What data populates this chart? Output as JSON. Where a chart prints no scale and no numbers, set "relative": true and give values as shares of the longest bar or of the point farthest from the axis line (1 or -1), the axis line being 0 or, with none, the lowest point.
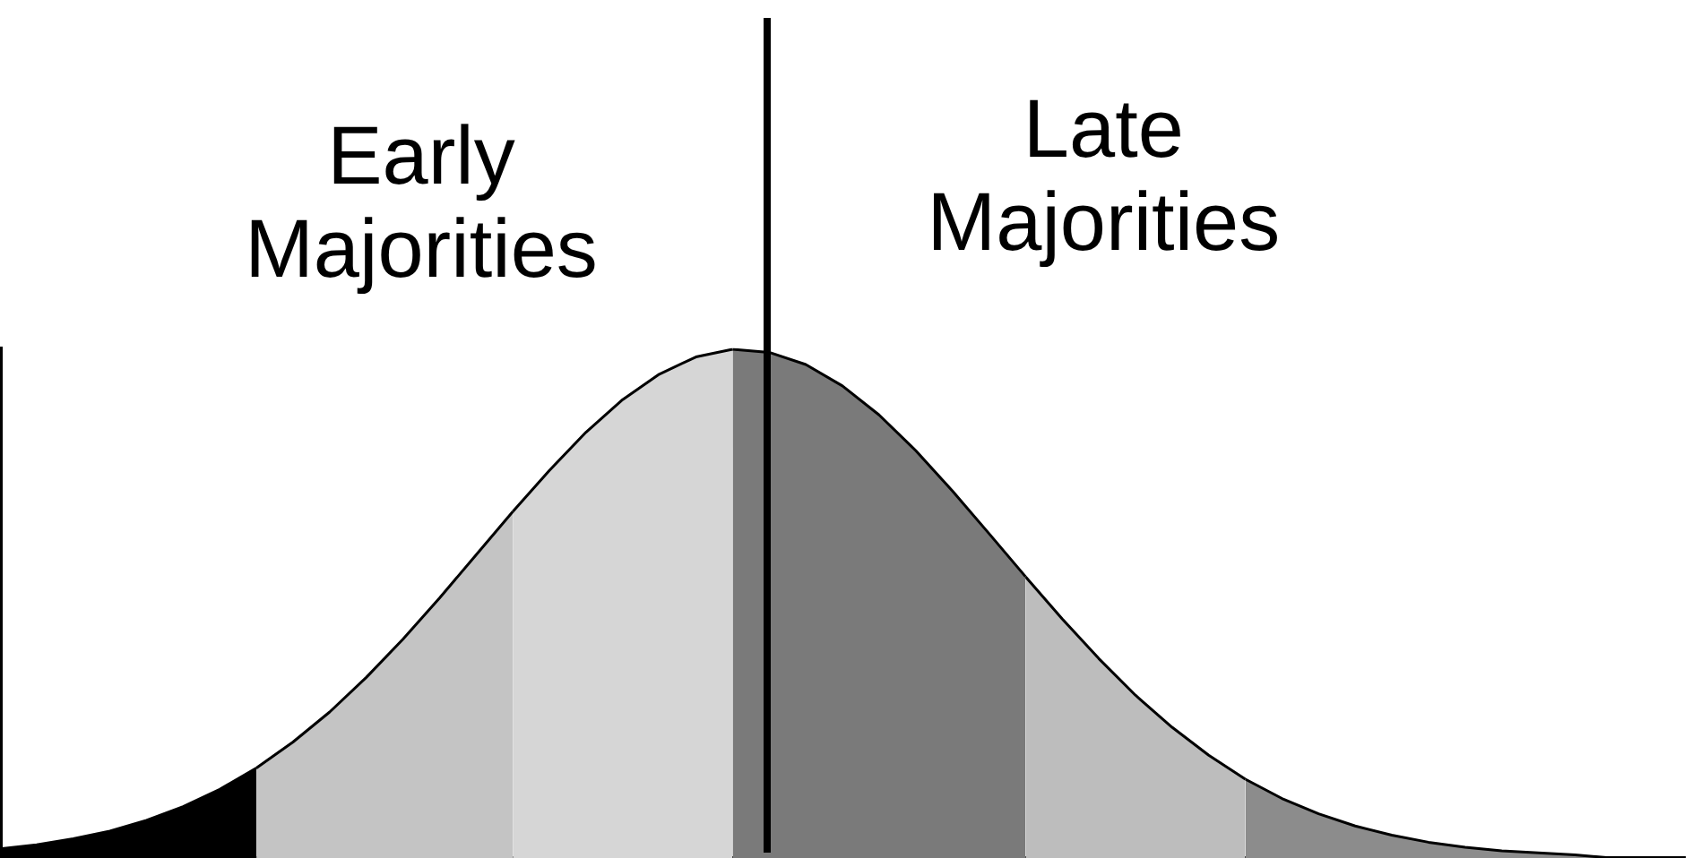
{
  "chart_data": {
    "type": "area",
    "relative": true,
    "categories": [
      null,
      null,
      null,
      null,
      null,
      null,
      null,
      null,
      null,
      null,
      null,
      null,
      null,
      null,
      null,
      null,
      null,
      null,
      null,
      null,
      null,
      null,
      null,
      null,
      null,
      null,
      null,
      null,
      null,
      null,
      null,
      null,
      null,
      null,
      null,
      null,
      null,
      null,
      null,
      null,
      null,
      null,
      null,
      null,
      null,
      null,
      null
    ],
    "annotations": [
      "Early Majorities",
      "Late Majorities"
    ],
    "series": [
      {
        "color": "#000000",
        "values": [
          0.018,
          0.026,
          0.038,
          0.053,
          0.074,
          0.101,
          0.135,
          0.177,
          null,
          null,
          null,
          null,
          null,
          null,
          null,
          null,
          null,
          null,
          null,
          null,
          null,
          null,
          null,
          null,
          null,
          null,
          null,
          null,
          null,
          null,
          null,
          null,
          null,
          null,
          null,
          null,
          null,
          null,
          null,
          null,
          null,
          null,
          null,
          null,
          null,
          null,
          null
        ]
      },
      {
        "color": "#c4c4c4",
        "values": [
          null,
          null,
          null,
          null,
          null,
          null,
          null,
          0.177,
          0.228,
          0.287,
          0.355,
          0.43,
          0.511,
          0.596,
          0.681,
          null,
          null,
          null,
          null,
          null,
          null,
          null,
          null,
          null,
          null,
          null,
          null,
          null,
          null,
          null,
          null,
          null,
          null,
          null,
          null,
          null,
          null,
          null,
          null,
          null,
          null,
          null,
          null,
          null,
          null,
          null,
          null
        ]
      },
      {
        "color": "#d6d6d6",
        "values": [
          null,
          null,
          null,
          null,
          null,
          null,
          null,
          null,
          null,
          null,
          null,
          null,
          null,
          null,
          0.681,
          0.762,
          0.837,
          0.901,
          0.951,
          0.985,
          1,
          null,
          null,
          null,
          null,
          null,
          null,
          null,
          null,
          null,
          null,
          null,
          null,
          null,
          null,
          null,
          null,
          null,
          null,
          null,
          null,
          null,
          null,
          null,
          null,
          null,
          null
        ]
      },
      {
        "color": "#7a7a7a",
        "values": [
          null,
          null,
          null,
          null,
          null,
          null,
          null,
          null,
          null,
          null,
          null,
          null,
          null,
          null,
          null,
          null,
          null,
          null,
          null,
          null,
          1,
          0.994,
          0.97,
          0.928,
          0.871,
          0.801,
          0.722,
          0.638,
          0.553,
          null,
          null,
          null,
          null,
          null,
          null,
          null,
          null,
          null,
          null,
          null,
          null,
          null,
          null,
          null,
          null,
          null,
          null
        ]
      },
      {
        "color": "#bdbdbd",
        "values": [
          null,
          null,
          null,
          null,
          null,
          null,
          null,
          null,
          null,
          null,
          null,
          null,
          null,
          null,
          null,
          null,
          null,
          null,
          null,
          null,
          null,
          null,
          null,
          null,
          null,
          null,
          null,
          null,
          0.553,
          0.47,
          0.392,
          0.32,
          0.257,
          0.202,
          0.155,
          null,
          null,
          null,
          null,
          null,
          null,
          null,
          null,
          null,
          null,
          null,
          null
        ]
      },
      {
        "color": "#8c8c8c",
        "values": [
          null,
          null,
          null,
          null,
          null,
          null,
          null,
          null,
          null,
          null,
          null,
          null,
          null,
          null,
          null,
          null,
          null,
          null,
          null,
          null,
          null,
          null,
          null,
          null,
          null,
          null,
          null,
          null,
          null,
          null,
          null,
          null,
          null,
          null,
          0.155,
          0.117,
          0.087,
          0.063,
          0.045,
          0.031,
          0.021,
          0.014,
          0.01,
          0.006,
          0,
          0,
          0
        ]
      }
    ]
  }
}
